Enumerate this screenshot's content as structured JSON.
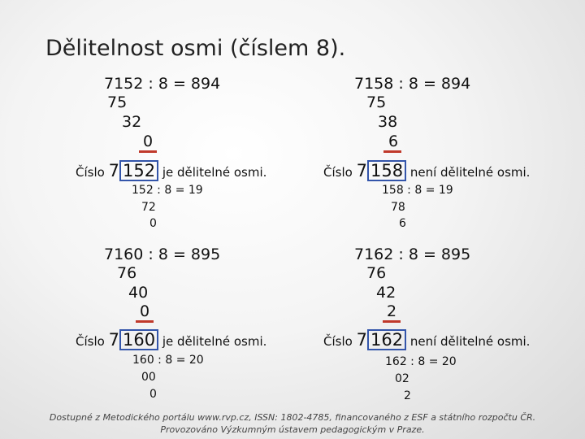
{
  "title": "Dělitelnost osmi (číslem 8).",
  "blocks": [
    {
      "equation": "7152 : 8 = 894",
      "steps": [
        "75",
        "32"
      ],
      "remainder": "0",
      "statement": {
        "prefix": "Číslo",
        "lead_digit": "7",
        "boxed": "152",
        "suffix": "je dělitelné osmi."
      },
      "sub_division": {
        "equation": "152 : 8 = 19",
        "steps": [
          "72"
        ],
        "remainder": "0"
      }
    },
    {
      "equation": "7158 : 8 = 894",
      "steps": [
        "75",
        "38"
      ],
      "remainder": "6",
      "statement": {
        "prefix": "Číslo",
        "lead_digit": "7",
        "boxed": "158",
        "suffix": "není dělitelné osmi."
      },
      "sub_division": {
        "equation": "158 : 8 = 19",
        "steps": [
          "78"
        ],
        "remainder": "6"
      }
    },
    {
      "equation": "7160 : 8 = 895",
      "steps": [
        "76",
        "40"
      ],
      "remainder": "0",
      "statement": {
        "prefix": "Číslo",
        "lead_digit": "7",
        "boxed": "160",
        "suffix": "je dělitelné osmi."
      },
      "sub_division": {
        "equation": "160 : 8 = 20",
        "steps": [
          "00"
        ],
        "remainder": "0"
      }
    },
    {
      "equation": "7162 : 8 = 895",
      "steps": [
        "76",
        "42"
      ],
      "remainder": "2",
      "statement": {
        "prefix": "Číslo",
        "lead_digit": "7",
        "boxed": "162",
        "suffix": "není dělitelné osmi."
      },
      "sub_division": {
        "equation": "162 : 8 = 20",
        "steps": [
          "02"
        ],
        "remainder": "2"
      }
    }
  ],
  "footer": {
    "line1": "Dostupné z Metodického portálu www.rvp.cz, ISSN: 1802-4785, financovaného z ESF a státního rozpočtu ČR.",
    "line2": "Provozováno Výzkumným ústavem pedagogickým v Praze."
  },
  "colors": {
    "box_border": "#3355aa",
    "remainder_underline": "#c0392b"
  }
}
